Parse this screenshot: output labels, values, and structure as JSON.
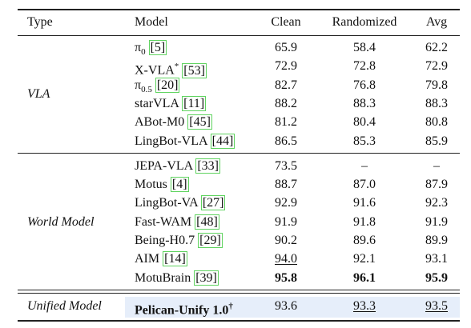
{
  "table": {
    "headers": [
      "Type",
      "Model",
      "Clean",
      "Randomized",
      "Avg"
    ],
    "groups": [
      {
        "type": "VLA",
        "rows": [
          {
            "name": "π",
            "sub": "0",
            "cite": "[5]",
            "values": [
              "65.9",
              "58.4",
              "62.2"
            ]
          },
          {
            "name": "X-VLA",
            "sup": "*",
            "cite": "[53]",
            "values": [
              "72.9",
              "72.8",
              "72.9"
            ]
          },
          {
            "name": "π",
            "sub": "0.5",
            "cite": "[20]",
            "values": [
              "82.7",
              "76.8",
              "79.8"
            ]
          },
          {
            "name": "starVLA",
            "cite": "[11]",
            "values": [
              "88.2",
              "88.3",
              "88.3"
            ]
          },
          {
            "name": "ABot-M0",
            "cite": "[45]",
            "values": [
              "81.2",
              "80.4",
              "80.8"
            ]
          },
          {
            "name": "LingBot-VLA",
            "cite": "[44]",
            "values": [
              "86.5",
              "85.3",
              "85.9"
            ]
          }
        ]
      },
      {
        "type": "World Model",
        "rows": [
          {
            "name": "JEPA-VLA",
            "cite": "[33]",
            "values": [
              "73.5",
              "–",
              "–"
            ]
          },
          {
            "name": "Motus",
            "cite": "[4]",
            "values": [
              "88.7",
              "87.0",
              "87.9"
            ]
          },
          {
            "name": "LingBot-VA",
            "cite": "[27]",
            "values": [
              "92.9",
              "91.6",
              "92.3"
            ]
          },
          {
            "name": "Fast-WAM",
            "cite": "[48]",
            "values": [
              "91.9",
              "91.8",
              "91.9"
            ]
          },
          {
            "name": "Being-H0.7",
            "cite": "[29]",
            "values": [
              "90.2",
              "89.6",
              "89.9"
            ]
          },
          {
            "name": "AIM",
            "cite": "[14]",
            "values": [
              "94.0",
              "92.1",
              "93.1"
            ],
            "underline": [
              0
            ]
          },
          {
            "name": "MotuBrain",
            "cite": "[39]",
            "values": [
              "95.8",
              "96.1",
              "95.9"
            ],
            "bold": [
              0,
              1,
              2
            ]
          }
        ]
      },
      {
        "type": "Unified Model",
        "highlight": true,
        "rows": [
          {
            "name": "Pelican-Unify 1.0",
            "sup": "†",
            "bold_name": true,
            "values": [
              "93.6",
              "93.3",
              "93.5"
            ],
            "underline": [
              1,
              2
            ]
          }
        ]
      }
    ]
  }
}
